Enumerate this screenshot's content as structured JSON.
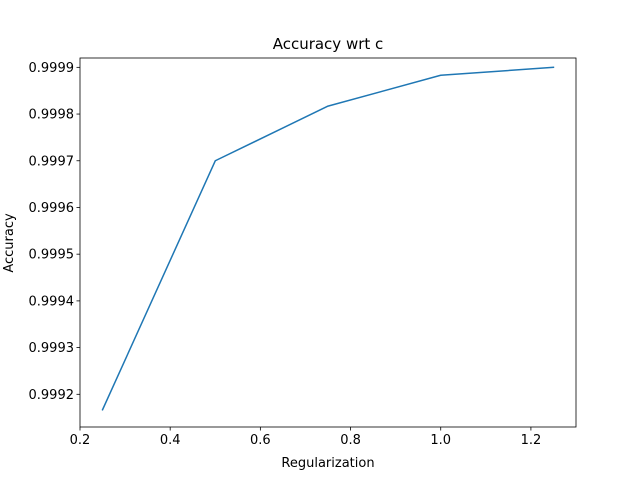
{
  "chart_data": {
    "type": "line",
    "title": "Accuracy wrt c",
    "xlabel": "Regularization",
    "ylabel": "Accuracy",
    "xlim": [
      0.2,
      1.3
    ],
    "ylim": [
      0.99913,
      0.99992
    ],
    "xticks": [
      0.2,
      0.4,
      0.6,
      0.8,
      1.0,
      1.2
    ],
    "xtick_labels": [
      "0.2",
      "0.4",
      "0.6",
      "0.8",
      "1.0",
      "1.2"
    ],
    "yticks": [
      0.9992,
      0.9993,
      0.9994,
      0.9995,
      0.9996,
      0.9997,
      0.9998,
      0.9999
    ],
    "ytick_labels": [
      "0.9992",
      "0.9993",
      "0.9994",
      "0.9995",
      "0.9996",
      "0.9997",
      "0.9998",
      "0.9999"
    ],
    "grid": false,
    "series": [
      {
        "color": "#1f77b4",
        "x": [
          0.25,
          0.5,
          0.75,
          1.0,
          1.25
        ],
        "y": [
          0.999167,
          0.9997,
          0.999817,
          0.999883,
          0.9999
        ]
      }
    ]
  }
}
